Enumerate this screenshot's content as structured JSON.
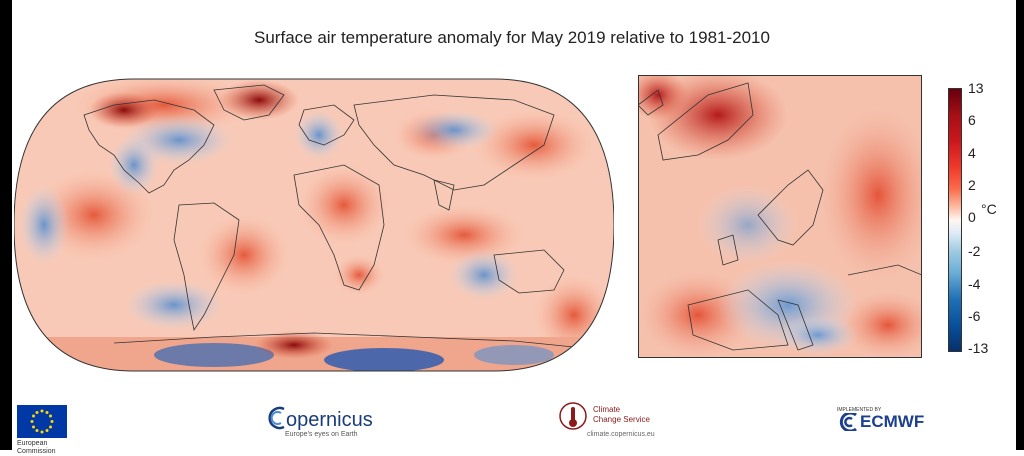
{
  "title": "Surface air temperature anomaly for May 2019 relative to 1981-2010",
  "colorbar": {
    "unit": "°C",
    "ticks": [
      "13",
      "6",
      "4",
      "2",
      "0",
      "-2",
      "-4",
      "-6",
      "-13"
    ],
    "colors": [
      "#67000d",
      "#cb181d",
      "#fb6a4a",
      "#fcbba1",
      "#fff5f0",
      "#9ecae1",
      "#6baed6",
      "#2171b5",
      "#08306b"
    ]
  },
  "footer": {
    "eu": {
      "line1": "European",
      "line2": "Commission"
    },
    "copernicus": {
      "name": "opernicus",
      "initial": "C",
      "tagline": "Europe's eyes on Earth"
    },
    "c3s": {
      "line1": "Climate",
      "line2": "Change Service",
      "url": "climate.copernicus.eu"
    },
    "ecmwf": {
      "implemented": "IMPLEMENTED BY",
      "name": "ECMWF"
    }
  }
}
